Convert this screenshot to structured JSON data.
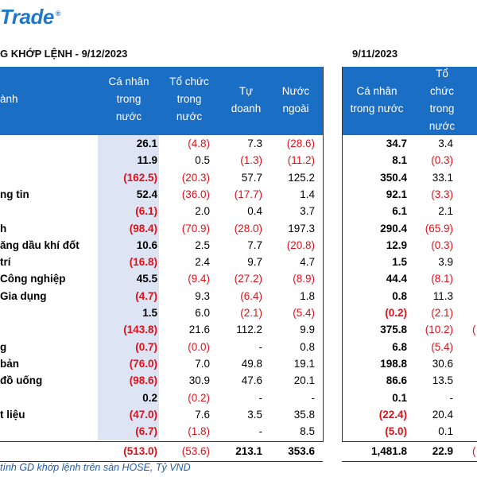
{
  "brand": {
    "logo_text": "Trade",
    "trademark": "®"
  },
  "left_title": "G KHỚP LỆNH - 9/12/2023",
  "right_title": "9/11/2023",
  "header_left": {
    "sector_fragment": "ành",
    "col1": [
      "Cá nhân",
      "trong",
      "nước"
    ],
    "col2": [
      "Tổ chức",
      "trong",
      "nước"
    ],
    "col3": [
      "Tự",
      "doanh"
    ],
    "col4": [
      "Nước",
      "ngoài"
    ]
  },
  "header_right": {
    "col1": [
      "Cá nhân",
      "trong nước"
    ],
    "col2": [
      "Tổ",
      "chức",
      "trong",
      "nước"
    ]
  },
  "rows": [
    {
      "label": "",
      "c1": "26.1",
      "c2": "(4.8)",
      "c3": "7.3",
      "c4": "(28.6)",
      "r1": "34.7",
      "r2": "3.4",
      "r3": ""
    },
    {
      "label": "",
      "c1": "11.9",
      "c2": "0.5",
      "c3": "(1.3)",
      "c4": "(11.2)",
      "r1": "8.1",
      "r2": "(0.3)",
      "r3": ""
    },
    {
      "label": "",
      "c1": "(162.5)",
      "c2": "(20.3)",
      "c3": "57.7",
      "c4": "125.2",
      "r1": "350.4",
      "r2": "33.1",
      "r3": ""
    },
    {
      "label": "ng tin",
      "c1": "52.4",
      "c2": "(36.0)",
      "c3": "(17.7)",
      "c4": "1.4",
      "r1": "92.1",
      "r2": "(3.3)",
      "r3": ""
    },
    {
      "label": "",
      "c1": "(6.1)",
      "c2": "2.0",
      "c3": "0.4",
      "c4": "3.7",
      "r1": "6.1",
      "r2": "2.1",
      "r3": ""
    },
    {
      "label": "h",
      "c1": "(98.4)",
      "c2": "(70.9)",
      "c3": "(28.0)",
      "c4": "197.3",
      "r1": "290.4",
      "r2": "(65.9)",
      "r3": ""
    },
    {
      "label": "ăng dầu khí đốt",
      "c1": "10.6",
      "c2": "2.5",
      "c3": "7.7",
      "c4": "(20.8)",
      "r1": "12.9",
      "r2": "(0.3)",
      "r3": ""
    },
    {
      "label": "trí",
      "c1": "(16.8)",
      "c2": "2.4",
      "c3": "9.7",
      "c4": "4.7",
      "r1": "1.5",
      "r2": "3.9",
      "r3": ""
    },
    {
      "label": "Công nghiệp",
      "c1": "45.5",
      "c2": "(9.4)",
      "c3": "(27.2)",
      "c4": "(8.9)",
      "r1": "44.4",
      "r2": "(8.1)",
      "r3": ""
    },
    {
      "label": "Gia dụng",
      "c1": "(4.7)",
      "c2": "9.3",
      "c3": "(6.4)",
      "c4": "1.8",
      "r1": "0.8",
      "r2": "11.3",
      "r3": ""
    },
    {
      "label": "",
      "c1": "1.5",
      "c2": "6.0",
      "c3": "(2.1)",
      "c4": "(5.4)",
      "r1": "(0.2)",
      "r2": "(2.1)",
      "r3": ""
    },
    {
      "label": "",
      "c1": "(143.8)",
      "c2": "21.6",
      "c3": "112.2",
      "c4": "9.9",
      "r1": "375.8",
      "r2": "(10.2)",
      "r3": "("
    },
    {
      "label": "g",
      "c1": "(0.7)",
      "c2": "(0.0)",
      "c3": "-",
      "c4": "0.8",
      "r1": "6.8",
      "r2": "(5.4)",
      "r3": ""
    },
    {
      "label": "bản",
      "c1": "(76.0)",
      "c2": "7.0",
      "c3": "49.8",
      "c4": "19.1",
      "r1": "198.8",
      "r2": "30.6",
      "r3": ""
    },
    {
      "label": "đồ uống",
      "c1": "(98.6)",
      "c2": "30.9",
      "c3": "47.6",
      "c4": "20.1",
      "r1": "86.6",
      "r2": "13.5",
      "r3": ""
    },
    {
      "label": "",
      "c1": "0.2",
      "c2": "(0.2)",
      "c3": "-",
      "c4": "-",
      "r1": "0.1",
      "r2": "-",
      "r3": ""
    },
    {
      "label": "t liệu",
      "c1": "(47.0)",
      "c2": "7.6",
      "c3": "3.5",
      "c4": "35.8",
      "r1": "(22.4)",
      "r2": "20.4",
      "r3": ""
    },
    {
      "label": "",
      "c1": "(6.7)",
      "c2": "(1.8)",
      "c3": "-",
      "c4": "8.5",
      "r1": "(5.0)",
      "r2": "0.1",
      "r3": ""
    }
  ],
  "total": {
    "c1": "(513.0)",
    "c2": "(53.6)",
    "c3": "213.1",
    "c4": "353.6",
    "r1": "1,481.8",
    "r2": "22.9",
    "r3": "("
  },
  "footnote": "tính GD khớp lệnh trên sàn HOSE, Tỷ VND"
}
